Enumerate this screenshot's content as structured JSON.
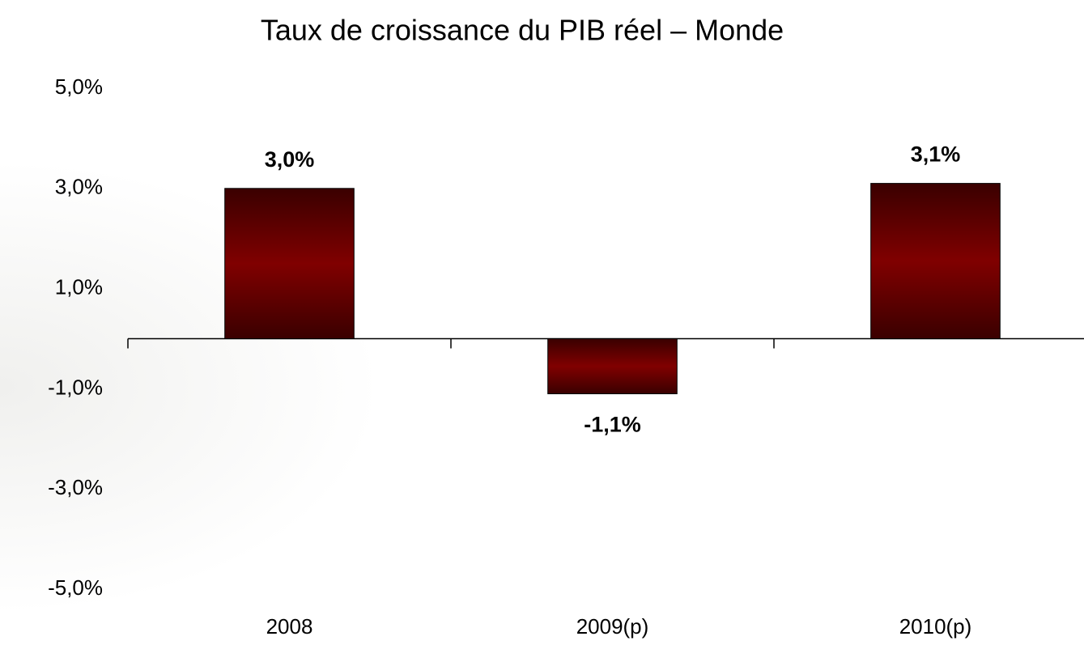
{
  "chart_data": {
    "type": "bar",
    "title": "Taux de croissance du PIB réel – Monde",
    "categories": [
      "2008",
      "2009(p)",
      "2010(p)"
    ],
    "values": [
      3.0,
      -1.1,
      3.1
    ],
    "value_labels": [
      "3,0%",
      "-1,1%",
      "3,1%"
    ],
    "color": "#7a0000",
    "ylim": [
      -5,
      5
    ],
    "yticks": [
      {
        "value": 5,
        "label": "5,0%"
      },
      {
        "value": 3,
        "label": "3,0%"
      },
      {
        "value": 1,
        "label": "1,0%"
      },
      {
        "value": -1,
        "label": "-1,0%"
      },
      {
        "value": -3,
        "label": "-3,0%"
      },
      {
        "value": -5,
        "label": "-5,0%"
      }
    ],
    "grid": false
  }
}
